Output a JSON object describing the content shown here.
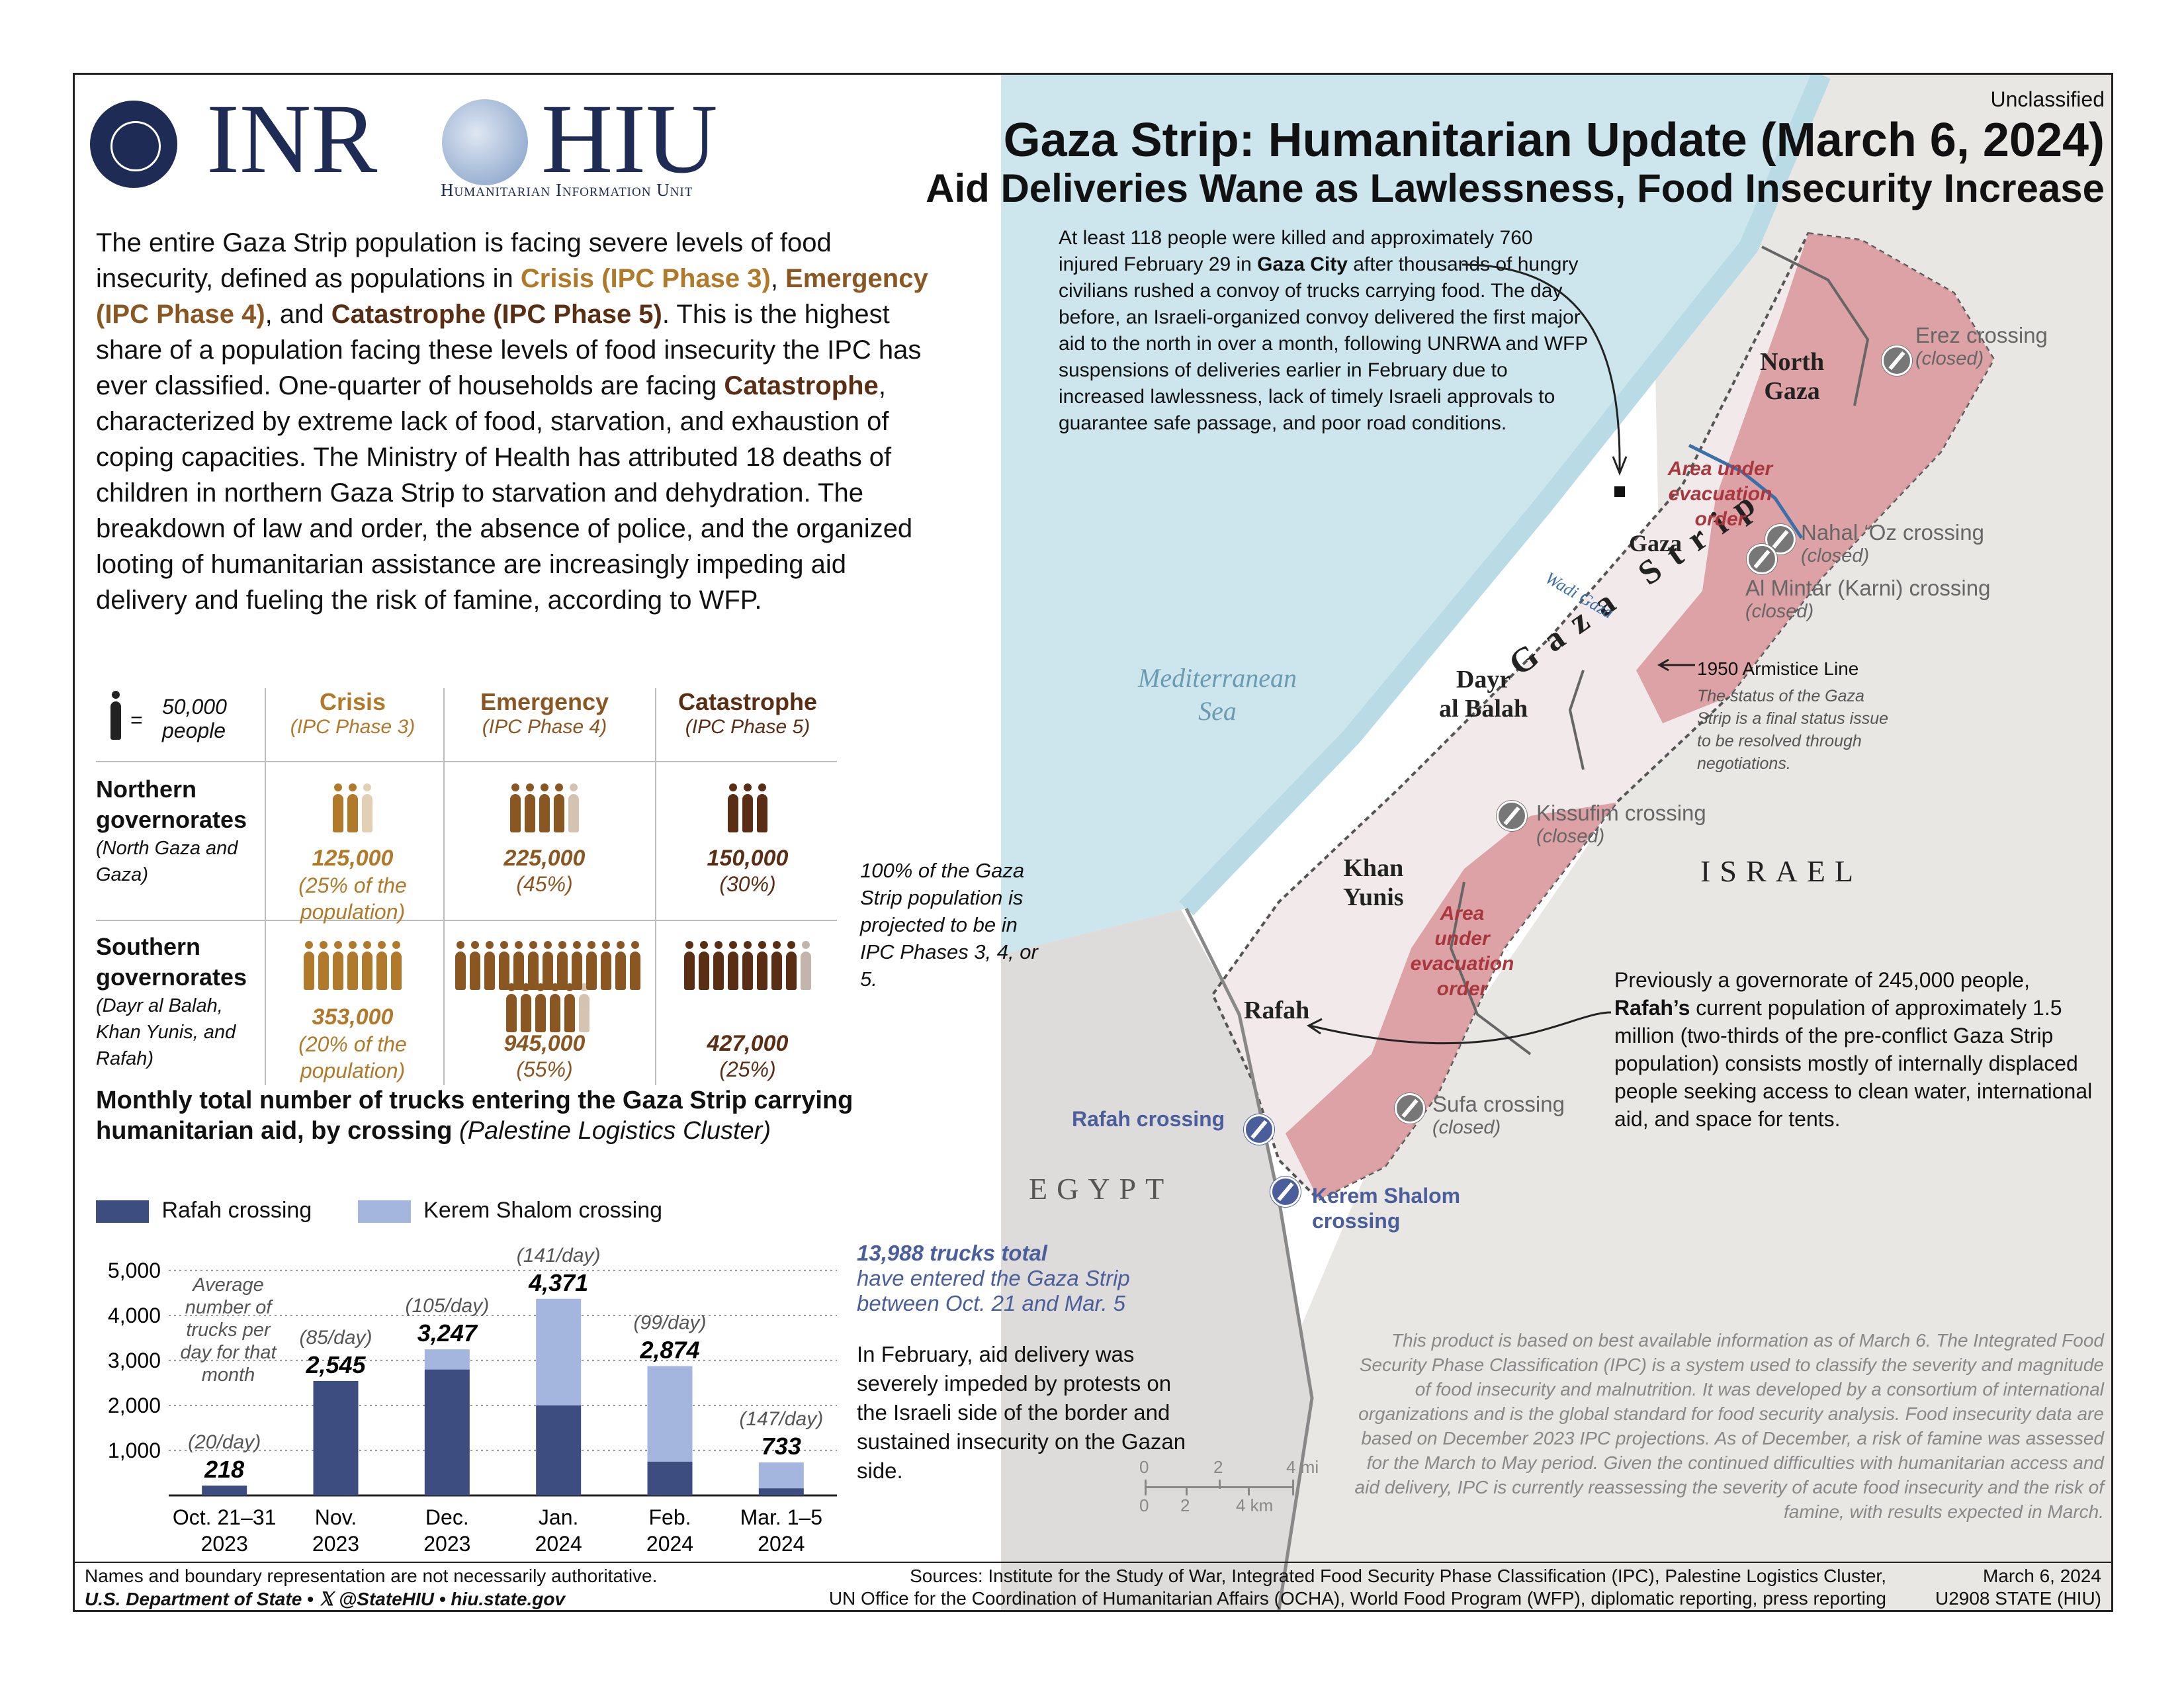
{
  "colors": {
    "crisis": "#b07a2a",
    "emergency": "#8a5622",
    "catastrophe": "#5a2e14",
    "rafah_bar": "#3d4d80",
    "kerem_bar": "#a4b6dd",
    "evac": "#d99a9e",
    "sea": "#cde6ee",
    "egypt": "#dedcda",
    "israel": "#e9e7e4"
  },
  "header": {
    "classification": "Unclassified",
    "logo_inr": "INR",
    "logo_hiu": "HIU",
    "logo_hiu_sub": "Humanitarian Information Unit",
    "title": "Gaza Strip: Humanitarian Update (March 6, 2024)",
    "subtitle": "Aid Deliveries Wane as Lawlessness, Food Insecurity Increase"
  },
  "intro": {
    "t1": "The entire Gaza Strip population is facing severe levels of food insecurity, defined as populations in ",
    "crisis": "Crisis (IPC Phase 3)",
    "t2": ", ",
    "emergency": "Emergency (IPC Phase 4)",
    "t3": ", and ",
    "catastrophe": "Catastrophe (IPC Phase 5)",
    "t4": ". This is the highest share of a population facing these levels of food insecurity the IPC has ever classified. One-quarter of households are facing ",
    "catastrophe2": "Catastrophe",
    "t5": ", characterized by extreme lack of food, starvation, and exhaustion of coping capacities. The Ministry of Health has attributed 18 deaths of children in northern Gaza Strip to starvation and dehydration. The breakdown of law and order, the absence of police, and the organized looting of humanitarian assistance are increasingly impeding aid delivery and fueling the risk of famine, according to WFP."
  },
  "ipc_table": {
    "legend_eq": "=",
    "legend_value": "50,000",
    "legend_unit": "people",
    "columns": [
      {
        "name": "Crisis",
        "phase": "(IPC Phase 3)"
      },
      {
        "name": "Emergency",
        "phase": "(IPC Phase 4)"
      },
      {
        "name": "Catastrophe",
        "phase": "(IPC Phase 5)"
      }
    ],
    "rows": [
      {
        "name": "Northern governorates",
        "detail": "(North Gaza and Gaza)",
        "icons": [
          2.5,
          4.5,
          3
        ],
        "cells": [
          {
            "num": "125,000",
            "pct": "(25% of the population)"
          },
          {
            "num": "225,000",
            "pct": "(45%)"
          },
          {
            "num": "150,000",
            "pct": "(30%)"
          }
        ]
      },
      {
        "name": "Southern governorates",
        "detail": "(Dayr al Balah, Khan Yunis, and Rafah)",
        "icons": [
          7,
          18.9,
          8.5
        ],
        "cells": [
          {
            "num": "353,000",
            "pct": "(20% of the population)"
          },
          {
            "num": "945,000",
            "pct": "(55%)"
          },
          {
            "num": "427,000",
            "pct": "(25%)"
          }
        ]
      }
    ],
    "note": "100% of the Gaza Strip population is projected to be in IPC Phases 3, 4, or 5."
  },
  "chart_data": {
    "type": "bar",
    "stacked": true,
    "title": "Monthly total number of trucks entering the Gaza Strip carrying humanitarian aid, by crossing",
    "title_source": "(Palestine Logistics Cluster)",
    "categories": [
      "Oct. 21–31",
      "Nov.",
      "Dec.",
      "Jan.",
      "Feb.",
      "Mar. 1–5"
    ],
    "category_years": [
      "2023",
      "2023",
      "2023",
      "2024",
      "2024",
      "2024"
    ],
    "series": [
      {
        "name": "Rafah crossing",
        "values": [
          218,
          2545,
          2800,
          2000,
          750,
          160
        ]
      },
      {
        "name": "Kerem Shalom crossing",
        "values": [
          0,
          0,
          447,
          2371,
          2124,
          573
        ]
      }
    ],
    "totals": [
      "218",
      "2,545",
      "3,247",
      "4,371",
      "2,874",
      "733"
    ],
    "per_day": [
      "(20/day)",
      "(85/day)",
      "(105/day)",
      "(141/day)",
      "(99/day)",
      "(147/day)"
    ],
    "yticks": [
      "5,000",
      "4,000",
      "3,000",
      "2,000",
      "1,000"
    ],
    "ytick_values": [
      5000,
      4000,
      3000,
      2000,
      1000
    ],
    "ylim": [
      0,
      5000
    ],
    "annotation_avg": "Average number of trucks per day for that month",
    "total_note_bold": "13,988 trucks total",
    "total_note": "have entered the Gaza Strip between Oct. 21 and Mar. 5",
    "feb_note": "In February, aid delivery was severely impeded by protests on the Israeli side of the border and sustained insecurity on the Gazan side."
  },
  "map": {
    "gaza_city_note_1": "At least 118 people were killed and approximately 760 injured February 29 in ",
    "gaza_city_bold": "Gaza City",
    "gaza_city_note_2": " after thousands of hungry civilians rushed a convoy of trucks carrying food. The day before, an Israeli-organized convoy delivered the first major aid to the north in over a month, following UNRWA and WFP suspensions of deliveries earlier in February due to increased lawlessness, lack of timely Israeli approvals to guarantee safe passage, and poor road conditions.",
    "rafah_note_1": "Previously a governorate of 245,000 people, ",
    "rafah_bold": "Rafah’s",
    "rafah_note_2": " current population of approximately 1.5 million (two-thirds of the pre-conflict Gaza Strip population) consists mostly of internally displaced people seeking access to clean water, international aid, and space for tents.",
    "labels": {
      "north_gaza_1": "North",
      "north_gaza_2": "Gaza",
      "gaza": "Gaza",
      "dayr_1": "Dayr",
      "dayr_2": "al Balah",
      "khan_1": "Khan",
      "khan_2": "Yunis",
      "rafah": "Rafah",
      "strip": "Gaza Strip",
      "israel": "ISRAEL",
      "egypt": "EGYPT",
      "sea_1": "Mediterranean",
      "sea_2": "Sea",
      "wadi": "Wadi Gaza"
    },
    "evac_1_a": "Area under",
    "evac_1_b": "evacuation",
    "evac_1_c": "order",
    "evac_2_a": "Area",
    "evac_2_b": "under",
    "evac_2_c": "evacuation",
    "evac_2_d": "order",
    "armistice": "1950 Armistice Line",
    "armistice_note": "The status of the Gaza Strip is a final status issue to be resolved through negotiations.",
    "crossings": {
      "erez": "Erez crossing",
      "nahal": "Nahal ‘Oz crossing",
      "karni": "Al Mintar (Karni) crossing",
      "kissufim": "Kissufim crossing",
      "sufa": "Sufa crossing",
      "rafah": "Rafah crossing",
      "kerem_a": "Kerem Shalom",
      "kerem_b": "crossing",
      "closed": "(closed)"
    },
    "scale_mi": [
      "0",
      "2",
      "4 mi"
    ],
    "scale_km": [
      "0",
      "2",
      "4 km"
    ],
    "disclaimer": "This product is based on best available information as of March 6. The Integrated Food Security Phase Classification (IPC) is a system used to classify the severity and magnitude of food insecurity and malnutrition. It was developed by a consortium of international organizations and is the global standard for food security analysis. Food insecurity data are based on December 2023 IPC projections. As of December, a risk of famine was assessed for the March to May period. Given the continued difficulties with humanitarian access and aid delivery, IPC is currently reassessing the severity of acute food insecurity and the risk of famine, with results expected in March."
  },
  "footer": {
    "names_note": "Names and boundary representation are not necessarily authoritative.",
    "dept": "U.S. Department of State • 𝕏 @StateHIU • hiu.state.gov",
    "sources_1": "Sources: Institute for the Study of War, Integrated Food Security Phase Classification (IPC), Palestine Logistics Cluster,",
    "sources_2": "UN Office for the Coordination of Humanitarian Affairs (OCHA), World Food Program (WFP), diplomatic reporting, press reporting",
    "date": "March 6, 2024",
    "code": "U2908 STATE (HIU)"
  }
}
